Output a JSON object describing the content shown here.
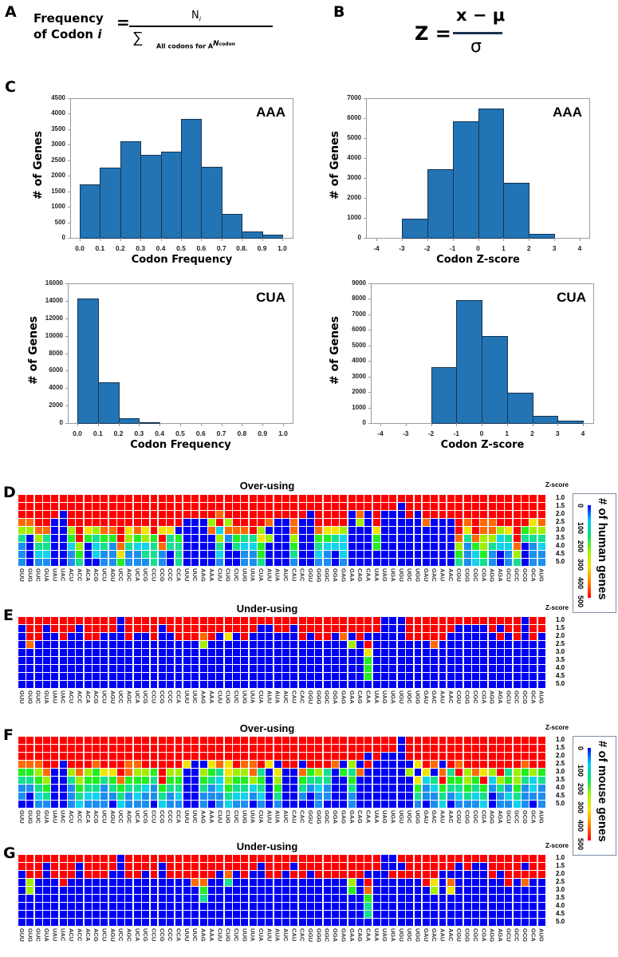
{
  "panels": {
    "A": "A",
    "B": "B",
    "C": "C",
    "D": "D",
    "E": "E",
    "F": "F",
    "G": "G"
  },
  "formula_a": {
    "lhs_line1": "Frequency",
    "lhs_line2": "of Codon ",
    "lhs_var": "i",
    "equals": "=",
    "numerator_n": "N",
    "numerator_sub": "i",
    "sigma": "∑",
    "denom_text": "All codons for A",
    "denom_n": "N",
    "denom_sub": "codon"
  },
  "formula_b": {
    "lhs": "Z =",
    "numerator": "x − μ",
    "denominator": "σ"
  },
  "chart_data": [
    {
      "type": "bar",
      "title": "AAA",
      "xlabel": "Codon Frequency",
      "ylabel": "# of Genes",
      "bin_edges": [
        0,
        0.1,
        0.2,
        0.3,
        0.4,
        0.5,
        0.6,
        0.7,
        0.8,
        0.9,
        1.0
      ],
      "values": [
        1730,
        2270,
        3100,
        2680,
        2780,
        3820,
        2280,
        760,
        200,
        110
      ],
      "xlim": [
        0,
        1
      ],
      "ylim": [
        0,
        4500
      ],
      "xticks": [
        0,
        0.1,
        0.2,
        0.3,
        0.4,
        0.5,
        0.6,
        0.7,
        0.8,
        0.9,
        1.0
      ],
      "xtick_labels": [
        "0.0",
        "0.1",
        "0.2",
        "0.3",
        "0.4",
        "0.5",
        "0.6",
        "0.7",
        "0.8.",
        "0.9",
        "1.0"
      ],
      "yticks": [
        "0",
        "500",
        "1000",
        "1500",
        "2000",
        "2500",
        "3000",
        "3500",
        "4000",
        "4500"
      ]
    },
    {
      "type": "bar",
      "title": "AAA",
      "xlabel": "Codon Z-score",
      "ylabel": "# of Genes",
      "bin_edges": [
        -4,
        -3,
        -2,
        -1,
        0,
        1,
        2,
        3,
        4
      ],
      "values": [
        0,
        970,
        3430,
        5830,
        6470,
        2750,
        220,
        0
      ],
      "xlim": [
        -4,
        4
      ],
      "ylim": [
        0,
        7000
      ],
      "xticks": [
        -4,
        -3,
        -2,
        -1,
        0,
        1,
        2,
        3,
        4
      ],
      "xtick_labels": [
        "-4",
        "-3",
        "-2",
        "-1",
        "0",
        "1",
        "2",
        "3",
        "4"
      ],
      "yticks": [
        "0",
        "1000",
        "2000",
        "3000",
        "4000",
        "5000",
        "6000",
        "7000"
      ]
    },
    {
      "type": "bar",
      "title": "CUA",
      "xlabel": "Codon Frequency",
      "ylabel": "# of Genes",
      "bin_edges": [
        0,
        0.1,
        0.2,
        0.3,
        0.4,
        0.5,
        0.6,
        0.7,
        0.8,
        0.9,
        1.0
      ],
      "values": [
        14300,
        4700,
        550,
        80,
        0,
        0,
        0,
        0,
        0,
        0
      ],
      "xlim": [
        0,
        1
      ],
      "ylim": [
        0,
        16000
      ],
      "xticks": [
        0,
        0.1,
        0.2,
        0.3,
        0.4,
        0.5,
        0.6,
        0.7,
        0.8,
        0.9,
        1.0
      ],
      "xtick_labels": [
        "0.0",
        "0.1",
        "0.2",
        "0.3",
        "0.4",
        "0.5",
        "0.6",
        "0.7",
        "0.8",
        "0.9",
        "1.0"
      ],
      "yticks": [
        "0",
        "2000",
        "4000",
        "6000",
        "8000",
        "10000",
        "12000",
        "14000",
        "16000"
      ]
    },
    {
      "type": "bar",
      "title": "CUA",
      "xlabel": "Codon Z-score",
      "ylabel": "# of Genes",
      "bin_edges": [
        -4,
        -3,
        -2,
        -1,
        0,
        1,
        2,
        3,
        4
      ],
      "values": [
        0,
        0,
        3620,
        7900,
        5600,
        1930,
        440,
        150
      ],
      "xlim": [
        -4,
        4
      ],
      "ylim": [
        0,
        9000
      ],
      "xticks": [
        -4,
        -3,
        -2,
        -1,
        0,
        1,
        2,
        3,
        4
      ],
      "xtick_labels": [
        "-4",
        "-3",
        "-2",
        "-1",
        "0",
        "1",
        "2",
        "3",
        "4"
      ],
      "yticks": [
        "0",
        "1000",
        "2000",
        "3000",
        "4000",
        "5000",
        "6000",
        "7000",
        "8000",
        "9000"
      ]
    },
    {
      "type": "heatmap",
      "title": "Over-using",
      "ylabel": "Z-score",
      "legend": "human",
      "rows": [
        "RRRRRRRRRRRRRRRRRRRRRRRRRRRRRRRRRRRRRRRRRRRRRRRRRRRRRRRRRRRRRRRR",
        "RRRRRRRRRRRRRRRRRRRRRRRRRRRRRRRRRRRRRRRRRRRRRRBRRRRRRRRRRRRRRRRR",
        "RRRRRBRRRRRRRRRRRRRRRRRRORRRRRRRRRRBRRRRBOBRBBBRBRRRRRRRRRRRRRRR",
        "OORRBBRRRRRRRRRRRRRRBBBLRLRRRROBBOBBRRRRBLBRBBBBBOBBBROROORRRRYO",
        "LLOOBBLRYLOORYOYRYYBBBBOCOOORLBBBOBBOYYLBBBYBBBBBBBBBRYROOLYRGLL",
        "TBLTBBGRGTGGRLGLGRTGBBBBLSGTTYLBBLBBGGTCBBBGBBBBBBBBBOTOLLCTRTTT",
        "SBTTBBCLBCTSOTCCTOTTBBBBTBTCCGBBBGBBTCCCBBBGBBBBBBBBBLSGLTCCOBSC",
        "SBCCBBSGBCSSYSSTTSBTBBBBCBBSSGBBBTBBCSBCBBBBBBBBBBBBBGSCGSBSLBSS",
        "SBSSBBSTBBSSGSSSTSBTBBBBSBBSSTBBBSBBSSBSBBBBBBBBBBBBBTSCTSBSTBSS"
      ]
    },
    {
      "type": "heatmap",
      "title": "Under-using",
      "ylabel": "Z-score",
      "legend": "human",
      "rows": [
        "RRRRRRRRRRRRBRRRRRRRRRRRRRRRRRRRRRRRRRRRRRRRBBBRRRRRRRRRRRRRRBRR",
        "BRRBRRRBRRRRBRRRRBRRRRRRRRRRRBBRRBRRRRRRRRRRBBBRRRRRRBBBBRBRRBRR",
        "BRRBBRBBRRBBBRBBRBBRRRORBYBRBBBBBBRBRRBOBRBBBBBRRRRRBBBBBBRBRBRB",
        "BOBBBBBBBBBBBBBBBBBBBBLBBBBBBBBBBBBBBBBBLBRBBBBBBBOBBBBBBBBBBBBB",
        "BBBBBBBBBBBBBBBBBBBBBBBBBBBBBBBBBBBBBBBBBBYBBBBBBBBBBBBBBBBBBBBB",
        "BBBBBBBBBBBBBBBBBBBBBBBBBBBBBBBBBBBBBBBBBBGBBBBBBBBBBBBBBBBBBBBB",
        "BBBBBBBBBBBBBBBBBBBBBBBBBBBBBBBBBBBBBBBBBBGBBBBBBBBBBBBBBBBBBBBB",
        "BBBBBBBBBBBBBBBBBBBBBBBBBBBBBBBBBBBBBBBBBBGBBBBBBBBBBBBBBBBBBBBB",
        "BBBBBBBBBBBBBBBBBBBBBBBBBBBBBBBBBBBBBBBBBBBBBBBBBBBBBBBBBBBBBBBB"
      ]
    },
    {
      "type": "heatmap",
      "title": "Over-using",
      "ylabel": "Z-score",
      "legend": "mouse",
      "rows": [
        "RRRRRRRRRRRRRRRRRRRRRRRRRRRRRRRRRRRRRRRRRRRRRRBRRRRRRRRRRRRRRRRR",
        "RRRRRRRRRRRRRRRRRRRRRRRRRRRRRRRRRRRRRRRRRRRRRRBRRRRRRRRRRRRRRRRR",
        "RRRRRRRRRRRRRRRRRRRRRRRRRRRRRRRRRRRRRRRRRRBRBBBRRRRRRRRRRRRRRRRR",
        "OOORRBRRRORRROORRRRRYBBYOYROORYBRRBRRROBLBRBBBBBYROBRORRRRRRRORR",
        "GGLOBBLOLGYYROLLGRLLBBLGTYLLOTBYBBOGLTBGTOBBBBBLBYBOTRLOYLRTLGLG",
        "TTGLBBTLGGTGOGGGTRGGBBGTCLGGLGBLBBGTTTBBGBBBBBBBYCTRGGLGRCLGLTCT",
        "SSTGBBSGTTSTGTTCSGTTBBTSCGTTCTBGBBTSCSBBTBBBBBBBGSCGTTGTGSTSGSCS",
        "SBCTBBSTCCSSTSCSSTSCBBSSSTCCSCBTBBSBSSBBSBBBBBBBTSSTSCTCTBSCTSSS",
        "BBSSBBSCSSSBCSSSBCSSBBSBSCSSBSBSBBBBSBBBSBBBBBBBSBSCBSSSCBSSCSBS"
      ]
    },
    {
      "type": "heatmap",
      "title": "Under-using",
      "ylabel": "Z-score",
      "legend": "mouse",
      "rows": [
        "RRRRRRRRRRRRBRRRRRRRRRRRRRRRRRRRRRRRRRRRRRRRBBRRRRRRRRRRRRRRRRRR",
        "RRRBRRRBRRRRBRRRRBRRRRRRRRRRRBRRRBRRRRRRRRRRBBBRRRRRRBRBBRRRRBRR",
        "BRRBRRRBRRRBBRRBRBRRRRRRBOBRBBRRBRRBRRRRRRBBBRRRRRRBBBBBBRBRRRRR",
        "BLBBBRBBBBBBBBBBBBBBBOOBBTBBBBBBBBBBBBBBLBRBBBBBBRYBOBBBBBBRBOBB",
        "BLBBBBBBBBBBBBBBBBBBBBGBBBBBBBBBBBBBBBBBGBOBBBBBBBLBYBBBBBBBBBBB",
        "BBBBBBBBBBBBBBBBBBBBBBTBBBBBBBBBBBBBBBBBBBGBBBBBBBBBBBBBBBBBBBBB",
        "BBBBBBBBBBBBBBBBBBBBBBBBBBBBBBBBBBBBBBBBBBTBBBBBBBBBBBBBBBBBBBBB",
        "BBBBBBBBBBBBBBBBBBBBBBBBBBBBBBBBBBBBBBBBBBTBBBBBBBBBBBBBBBBBBBBB",
        "BBBBBBBBBBBBBBBBBBBBBBBBBBBBBBBBBBBBBBBBBBBBBBBBBBBBBBBBBBBBBBBB"
      ]
    }
  ],
  "heatmap_shared": {
    "z_header": "Z-score",
    "z_levels": [
      "1.0",
      "1.5",
      "2.0",
      "2.5",
      "3.0",
      "3.5",
      "4.0",
      "4.5",
      "5.0"
    ],
    "codons": [
      "GUU",
      "GUG",
      "GUC",
      "GUA",
      "UAU",
      "UAC",
      "ACU",
      "ACC",
      "ACA",
      "ACG",
      "UCU",
      "AGU",
      "UCC",
      "AGC",
      "UCA",
      "UCG",
      "CCU",
      "CCG",
      "CCC",
      "CCA",
      "UUU",
      "UUC",
      "AAG",
      "AAA",
      "CUU",
      "CUG",
      "CUC",
      "UUG",
      "UUA",
      "CUA",
      "AUU",
      "AUA",
      "AUC",
      "CAU",
      "CAC",
      "GGU",
      "GGG",
      "GGC",
      "GGA",
      "GAG",
      "GAA",
      "CAG",
      "CAA",
      "UAA",
      "UAG",
      "UGA",
      "UGU",
      "UGC",
      "UGG",
      "GAU",
      "GAC",
      "AAU",
      "AAC",
      "CGU",
      "CGG",
      "CGC",
      "CGA",
      "AGG",
      "AGA",
      "GCU",
      "GCC",
      "GCG",
      "GCA",
      "AUG"
    ],
    "cell_code_values": {
      "B": 0,
      "S": 60,
      "C": 100,
      "T": 150,
      "G": 200,
      "L": 260,
      "Y": 320,
      "O": 420,
      "R": 500
    },
    "cell_colors": {
      "B": "#0000f5",
      "S": "#1c8ef0",
      "C": "#12d2ec",
      "T": "#14e090",
      "G": "#22ee22",
      "L": "#a2ee00",
      "Y": "#f2e400",
      "O": "#ff6a00",
      "R": "#ff0000"
    }
  },
  "legends": {
    "human": {
      "title": "# of human  genes",
      "ticks": [
        "0",
        "100",
        "200",
        "300",
        "400",
        "500"
      ]
    },
    "mouse": {
      "title": "# of mouse  genes",
      "ticks": [
        "0",
        "100",
        "200",
        "300",
        "400",
        "500"
      ]
    }
  },
  "colors": {
    "bar": "#2274b5",
    "bar_edge": "#17344f",
    "frame": "#9a9a9a"
  }
}
